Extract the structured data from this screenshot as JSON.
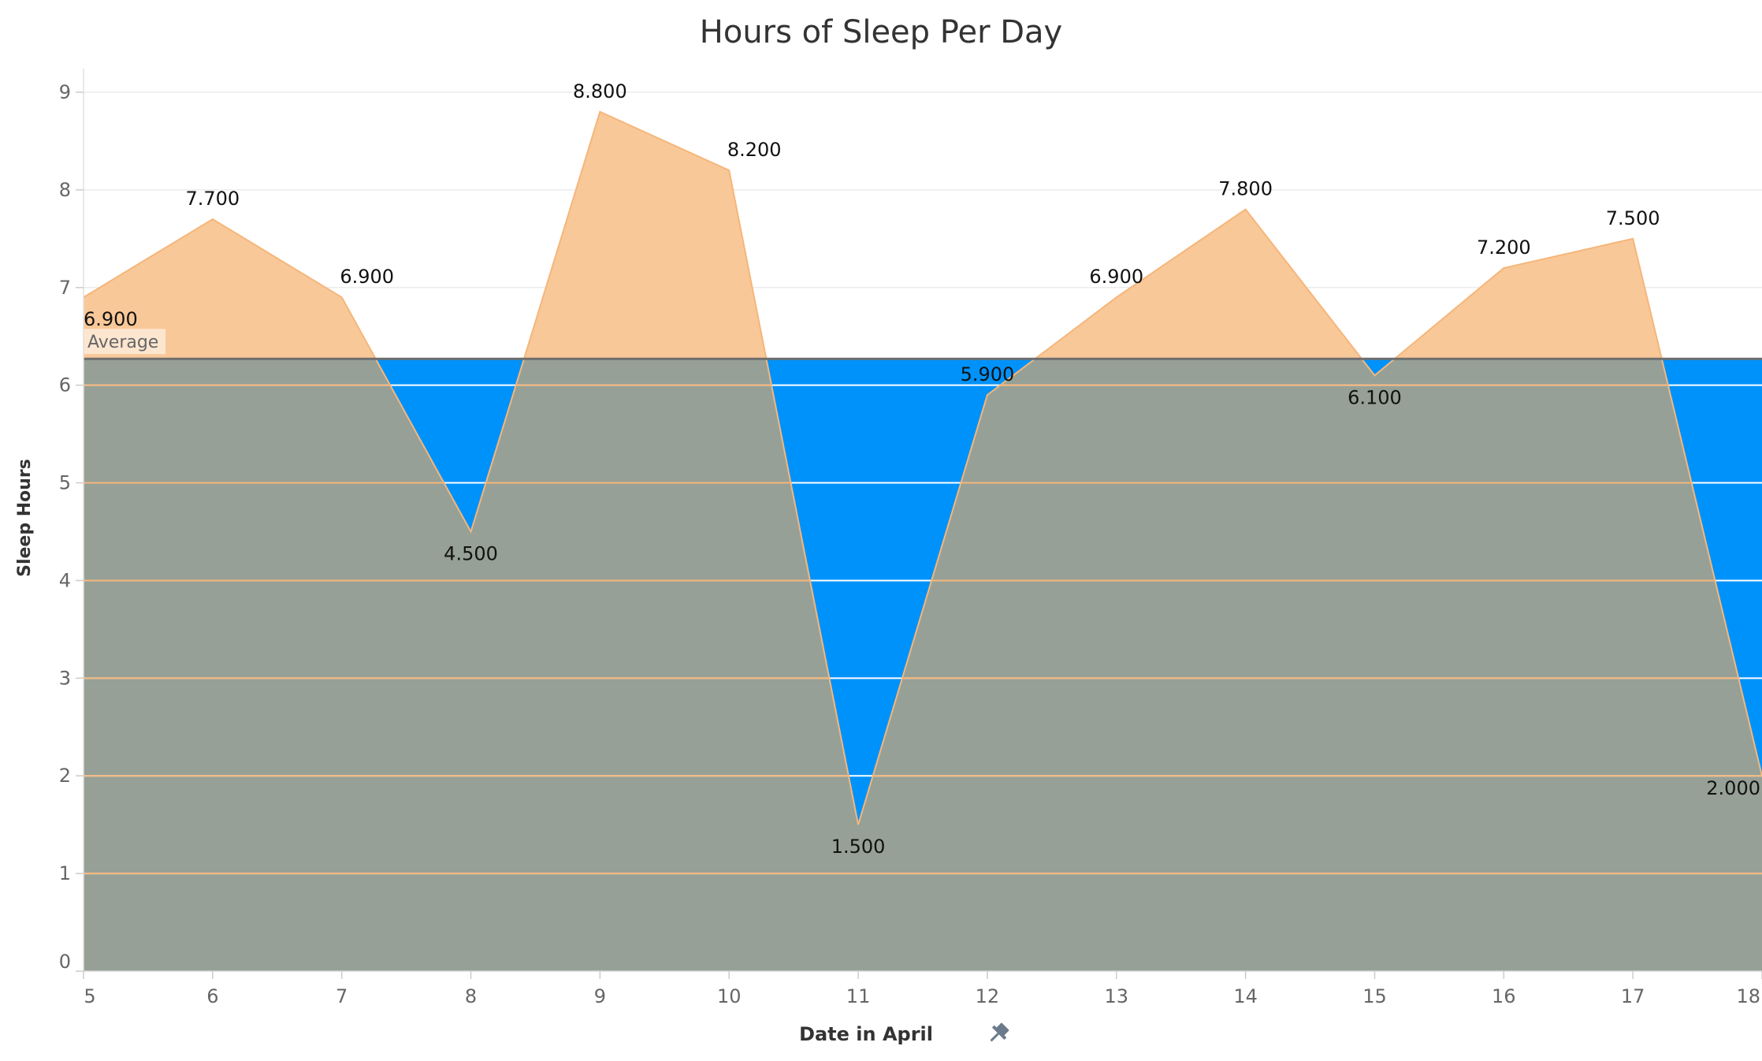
{
  "chart_data": {
    "type": "area",
    "title": "Hours of Sleep Per Day",
    "xlabel": "Date in April",
    "ylabel": "Sleep Hours",
    "x": [
      5,
      6,
      7,
      8,
      9,
      10,
      11,
      12,
      13,
      14,
      15,
      16,
      17,
      18
    ],
    "values": [
      6.9,
      7.7,
      6.9,
      4.5,
      8.8,
      8.2,
      1.5,
      5.9,
      6.9,
      7.8,
      6.1,
      7.2,
      7.5,
      2.0
    ],
    "value_labels": [
      "6.900",
      "7.700",
      "6.900",
      "4.500",
      "8.800",
      "8.200",
      "1.500",
      "5.900",
      "6.900",
      "7.800",
      "6.100",
      "7.200",
      "7.500",
      "2.000"
    ],
    "ylim": [
      0,
      9
    ],
    "yticks": [
      0,
      1,
      2,
      3,
      4,
      5,
      6,
      7,
      8,
      9
    ],
    "xticks": [
      5,
      6,
      7,
      8,
      9,
      10,
      11,
      12,
      13,
      14,
      15,
      16,
      17,
      18
    ],
    "reference_line": {
      "label": "Average",
      "value": 6.27
    },
    "grid": true,
    "colors": {
      "area": "#f9c898",
      "area_line": "#f5b67a",
      "below_average_fill": "#0092fb",
      "overlap_fill": "#96a096",
      "average_line": "#6e6e6e",
      "average_label_bg": "#fde6d0",
      "gridline_light": "#ececec"
    }
  }
}
